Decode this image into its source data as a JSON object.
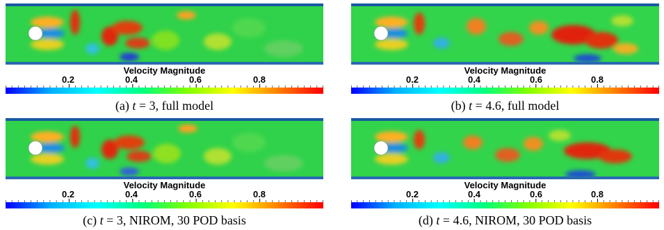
{
  "colorbar": {
    "title": "Velocity Magnitude",
    "ticks": [
      "0.2",
      "0.4",
      "0.6",
      "0.8"
    ],
    "tick_values": [
      0.2,
      0.4,
      0.6,
      0.8
    ],
    "range": [
      0,
      1
    ],
    "colors": [
      "#0000ff",
      "#00b0ff",
      "#00ffff",
      "#00ff80",
      "#80ff00",
      "#ffff00",
      "#ff8000",
      "#ff0000"
    ]
  },
  "panels": [
    {
      "label": "(a)",
      "var": "t",
      "eq": " = ",
      "time": "3",
      "suffix": ", full model"
    },
    {
      "label": "(b)",
      "var": "t",
      "eq": " = ",
      "time": "4.6",
      "suffix": ", full model"
    },
    {
      "label": "(c)",
      "var": "t",
      "eq": " = ",
      "time": "3",
      "suffix": ", NIROM, 30 POD basis"
    },
    {
      "label": "(d)",
      "var": "t",
      "eq": " = ",
      "time": "4.6",
      "suffix": ", NIROM, 30 POD basis"
    }
  ]
}
